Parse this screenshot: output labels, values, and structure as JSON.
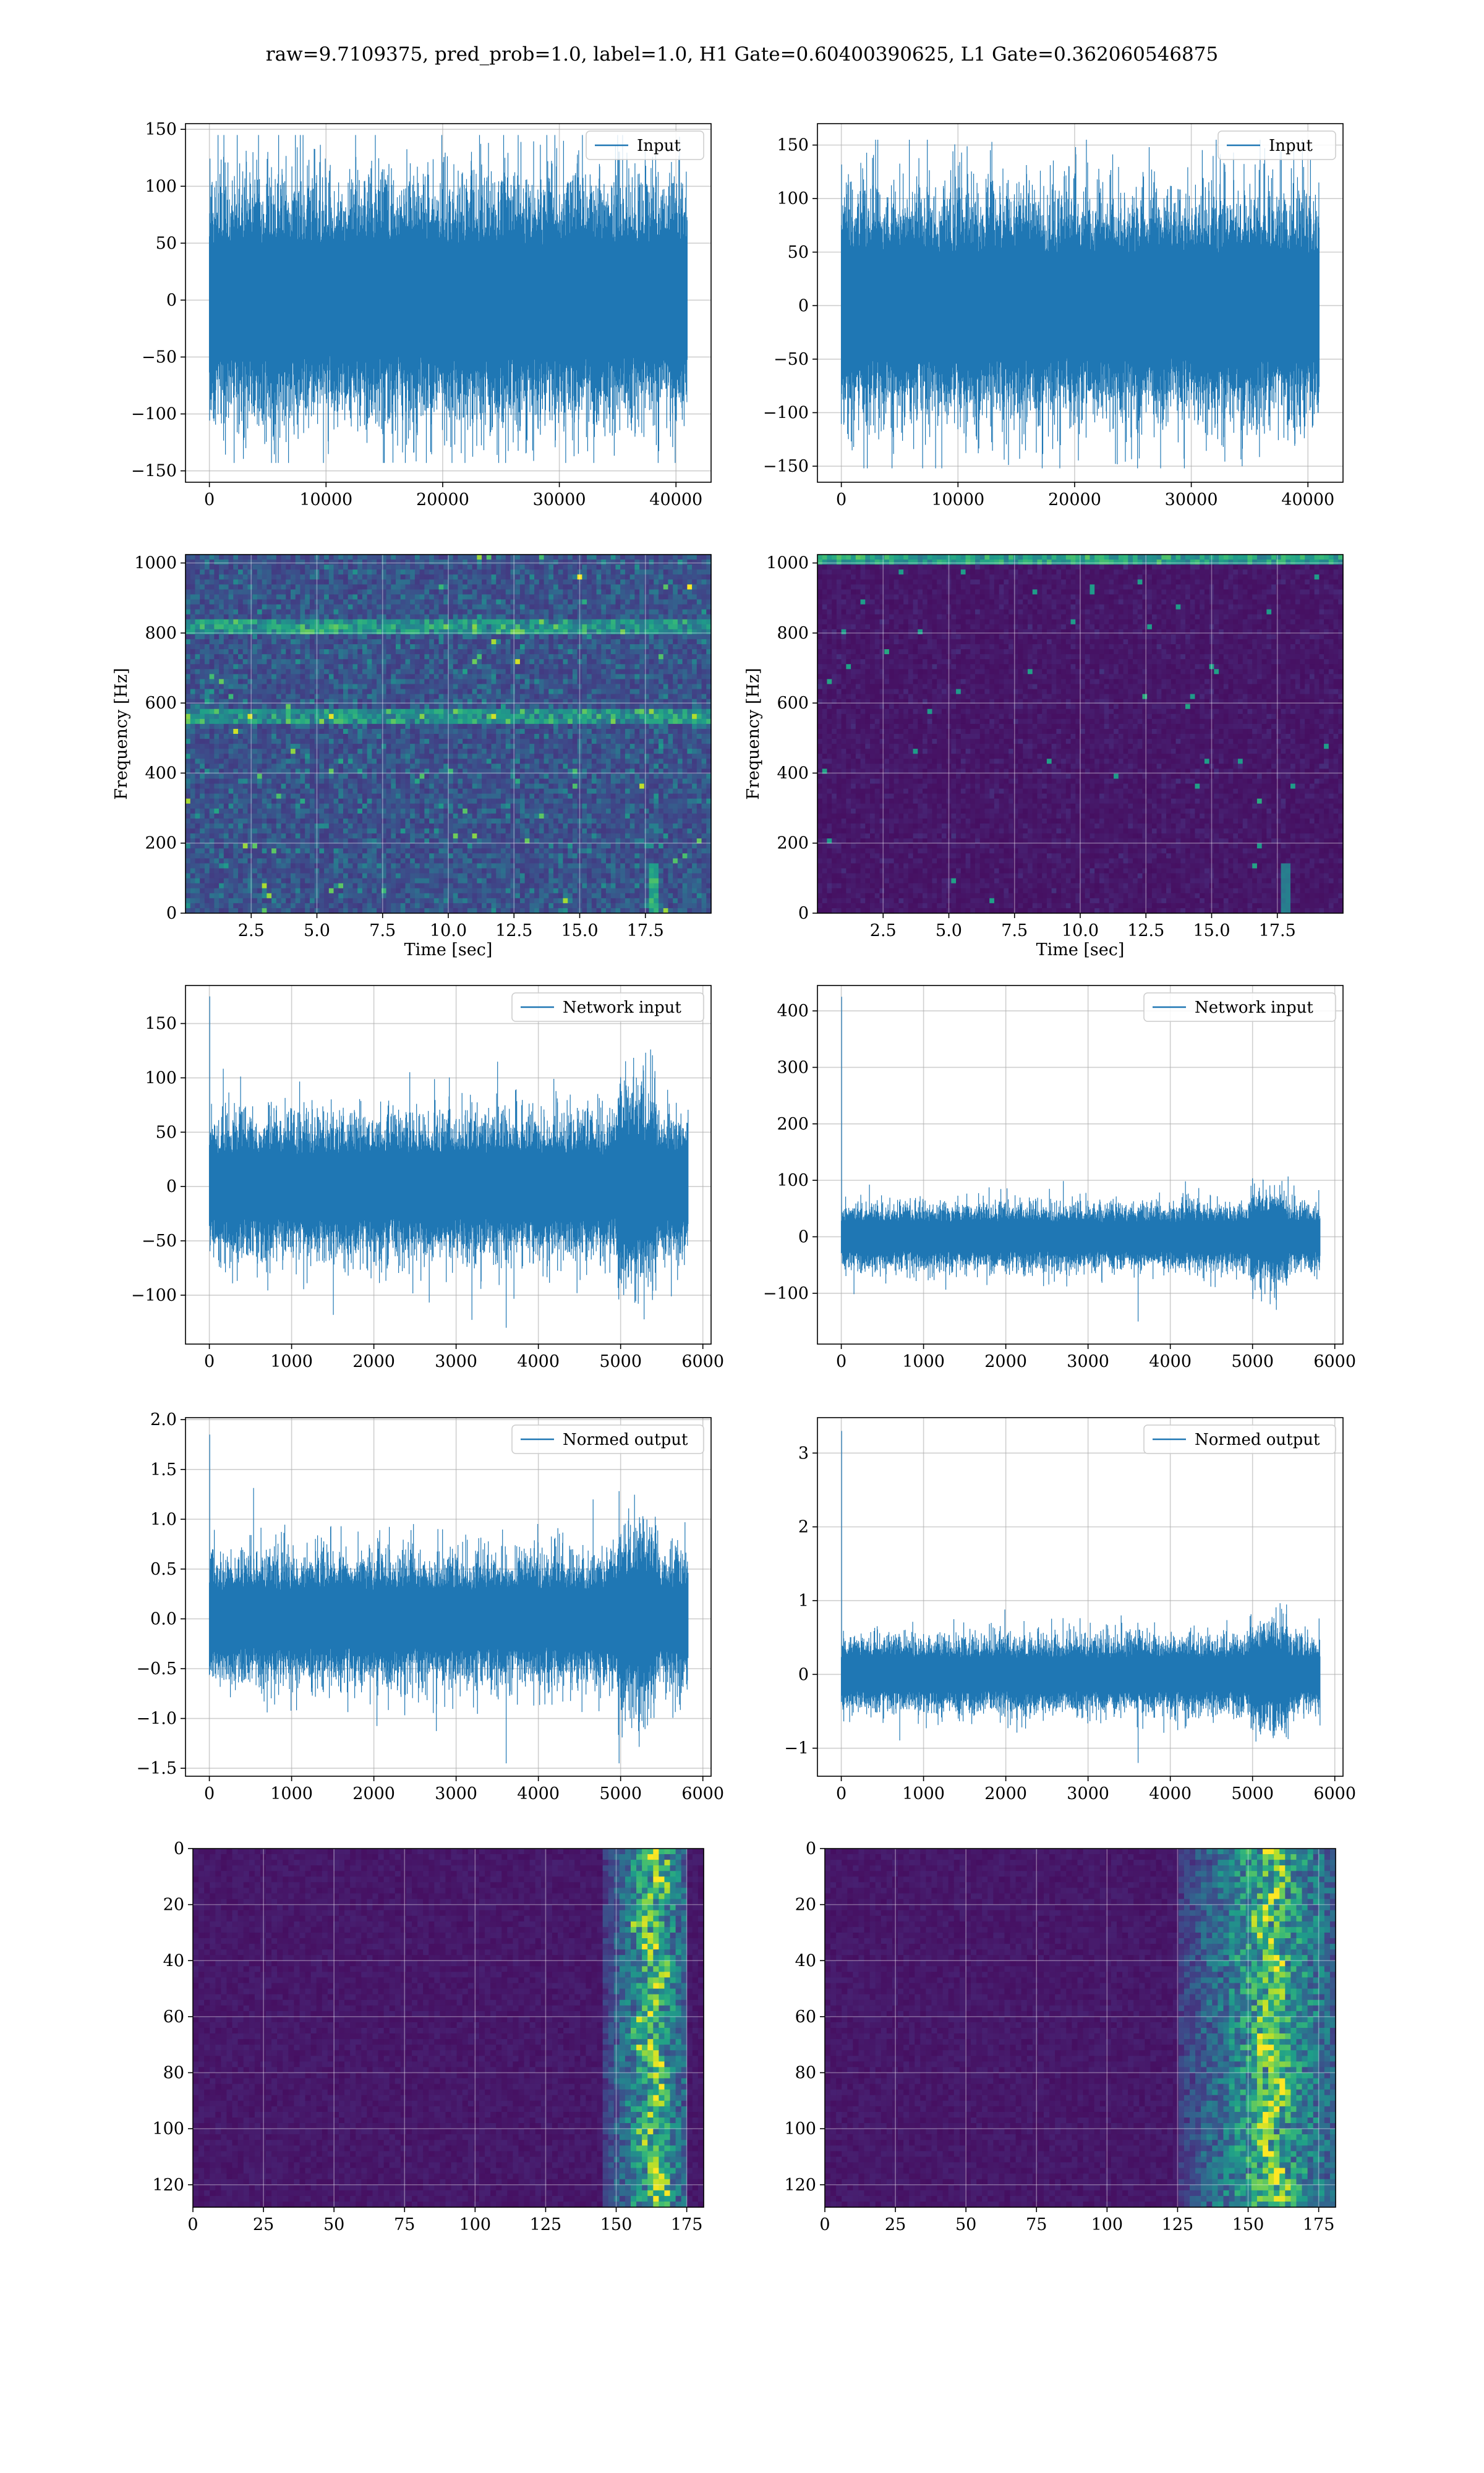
{
  "figure": {
    "suptitle": "raw=9.7109375, pred_prob=1.0, label=1.0, H1 Gate=0.60400390625, L1 Gate=0.362060546875"
  },
  "colors": {
    "line": "#1f77b4",
    "grid": "#b0b0b0",
    "viridis_low": "#440154",
    "viridis_high": "#fde725"
  },
  "chart_data": [
    {
      "id": "h1-input",
      "type": "line",
      "legend": "Input",
      "legend_loc": "upper right",
      "grid": true,
      "xlim": [
        -2048,
        43008
      ],
      "ylim": [
        -160,
        155
      ],
      "xticks": [
        0,
        10000,
        20000,
        30000,
        40000
      ],
      "yticks": [
        -150,
        -100,
        -50,
        0,
        50,
        100,
        150
      ],
      "series": [
        {
          "n_samples": 40960,
          "x_range": [
            0,
            40960
          ],
          "envelope": [
            -75,
            75
          ],
          "peak_max": 145,
          "peak_min": -143
        }
      ]
    },
    {
      "id": "l1-input",
      "type": "line",
      "legend": "Input",
      "legend_loc": "upper right",
      "grid": true,
      "xlim": [
        -2048,
        43008
      ],
      "ylim": [
        -165,
        170
      ],
      "xticks": [
        0,
        10000,
        20000,
        30000,
        40000
      ],
      "yticks": [
        -150,
        -100,
        -50,
        0,
        50,
        100,
        150
      ],
      "series": [
        {
          "n_samples": 40960,
          "x_range": [
            0,
            40960
          ],
          "envelope": [
            -75,
            75
          ],
          "peak_max": 155,
          "peak_min": -152
        }
      ]
    },
    {
      "id": "h1-spectrogram",
      "type": "heatmap",
      "colormap": "viridis",
      "grid": true,
      "xlabel": "Time [sec]",
      "ylabel": "Frequency [Hz]",
      "xlim": [
        0,
        20
      ],
      "ylim": [
        0,
        1024
      ],
      "xticks": [
        2.5,
        5.0,
        7.5,
        10.0,
        12.5,
        15.0,
        17.5
      ],
      "xtick_labels": [
        "2.5",
        "5.0",
        "7.5",
        "10.0",
        "12.5",
        "15.0",
        "17.5"
      ],
      "yticks": [
        0,
        200,
        400,
        600,
        800,
        1000
      ],
      "features": {
        "bright_bands_hz": [
          560,
          820
        ],
        "chirp_time_sec": 17.8
      }
    },
    {
      "id": "l1-spectrogram",
      "type": "heatmap",
      "colormap": "viridis",
      "grid": true,
      "xlabel": "Time [sec]",
      "ylabel": "Frequency [Hz]",
      "xlim": [
        0,
        20
      ],
      "ylim": [
        0,
        1024
      ],
      "xticks": [
        2.5,
        5.0,
        7.5,
        10.0,
        12.5,
        15.0,
        17.5
      ],
      "xtick_labels": [
        "2.5",
        "5.0",
        "7.5",
        "10.0",
        "12.5",
        "15.0",
        "17.5"
      ],
      "yticks": [
        0,
        200,
        400,
        600,
        800,
        1000
      ],
      "features": {
        "bright_bands_hz": [
          1010
        ],
        "chirp_time_sec": 17.8
      }
    },
    {
      "id": "h1-network-input",
      "type": "line",
      "legend": "Network input",
      "legend_loc": "upper right",
      "grid": true,
      "xlim": [
        -290,
        6100
      ],
      "ylim": [
        -145,
        185
      ],
      "xticks": [
        0,
        1000,
        2000,
        3000,
        4000,
        5000,
        6000
      ],
      "yticks": [
        -100,
        -50,
        0,
        50,
        100,
        150
      ],
      "series": [
        {
          "n_samples": 5820,
          "x_range": [
            0,
            5820
          ],
          "envelope": [
            -45,
            45
          ],
          "peak_max": 175,
          "peak_min": -130,
          "spike_x": 5,
          "burst_x": 5200
        }
      ]
    },
    {
      "id": "l1-network-input",
      "type": "line",
      "legend": "Network input",
      "legend_loc": "upper right",
      "grid": true,
      "xlim": [
        -290,
        6100
      ],
      "ylim": [
        -190,
        445
      ],
      "xticks": [
        0,
        1000,
        2000,
        3000,
        4000,
        5000,
        6000
      ],
      "yticks": [
        -100,
        0,
        100,
        200,
        300,
        400
      ],
      "series": [
        {
          "n_samples": 5820,
          "x_range": [
            0,
            5820
          ],
          "envelope": [
            -40,
            40
          ],
          "peak_max": 425,
          "peak_min": -150,
          "spike_x": 5,
          "burst_x": 5200
        }
      ]
    },
    {
      "id": "h1-normed-output",
      "type": "line",
      "legend": "Normed output",
      "legend_loc": "upper right",
      "grid": true,
      "xlim": [
        -290,
        6100
      ],
      "ylim": [
        -1.58,
        2.02
      ],
      "xticks": [
        0,
        1000,
        2000,
        3000,
        4000,
        5000,
        6000
      ],
      "yticks": [
        -1.5,
        -1.0,
        -0.5,
        0.0,
        0.5,
        1.0,
        1.5,
        2.0
      ],
      "ytick_labels": [
        "−1.5",
        "−1.0",
        "−0.5",
        "0.0",
        "0.5",
        "1.0",
        "1.5",
        "2.0"
      ],
      "series": [
        {
          "n_samples": 5820,
          "x_range": [
            0,
            5820
          ],
          "envelope": [
            -0.45,
            0.45
          ],
          "peak_max": 1.85,
          "peak_min": -1.45,
          "spike_x": 5,
          "burst_x": 5200
        }
      ]
    },
    {
      "id": "l1-normed-output",
      "type": "line",
      "legend": "Normed output",
      "legend_loc": "upper right",
      "grid": true,
      "xlim": [
        -290,
        6100
      ],
      "ylim": [
        -1.38,
        3.48
      ],
      "xticks": [
        0,
        1000,
        2000,
        3000,
        4000,
        5000,
        6000
      ],
      "yticks": [
        -1,
        0,
        1,
        2,
        3
      ],
      "series": [
        {
          "n_samples": 5820,
          "x_range": [
            0,
            5820
          ],
          "envelope": [
            -0.35,
            0.35
          ],
          "peak_max": 3.3,
          "peak_min": -1.2,
          "spike_x": 5,
          "burst_x": 5200
        }
      ]
    },
    {
      "id": "h1-feature-map",
      "type": "heatmap",
      "colormap": "viridis",
      "grid": true,
      "xlim": [
        0,
        181
      ],
      "ylim": [
        128,
        0
      ],
      "xticks": [
        0,
        25,
        50,
        75,
        100,
        125,
        150,
        175
      ],
      "yticks": [
        0,
        20,
        40,
        60,
        80,
        100,
        120
      ],
      "features": {
        "active_columns": [
          145,
          175
        ],
        "peak_column": 163
      }
    },
    {
      "id": "l1-feature-map",
      "type": "heatmap",
      "colormap": "viridis",
      "grid": true,
      "xlim": [
        0,
        181
      ],
      "ylim": [
        128,
        0
      ],
      "xticks": [
        0,
        25,
        50,
        75,
        100,
        125,
        150,
        175
      ],
      "yticks": [
        0,
        20,
        40,
        60,
        80,
        100,
        120
      ],
      "features": {
        "active_columns": [
          125,
          181
        ],
        "peak_column": 158
      }
    }
  ]
}
